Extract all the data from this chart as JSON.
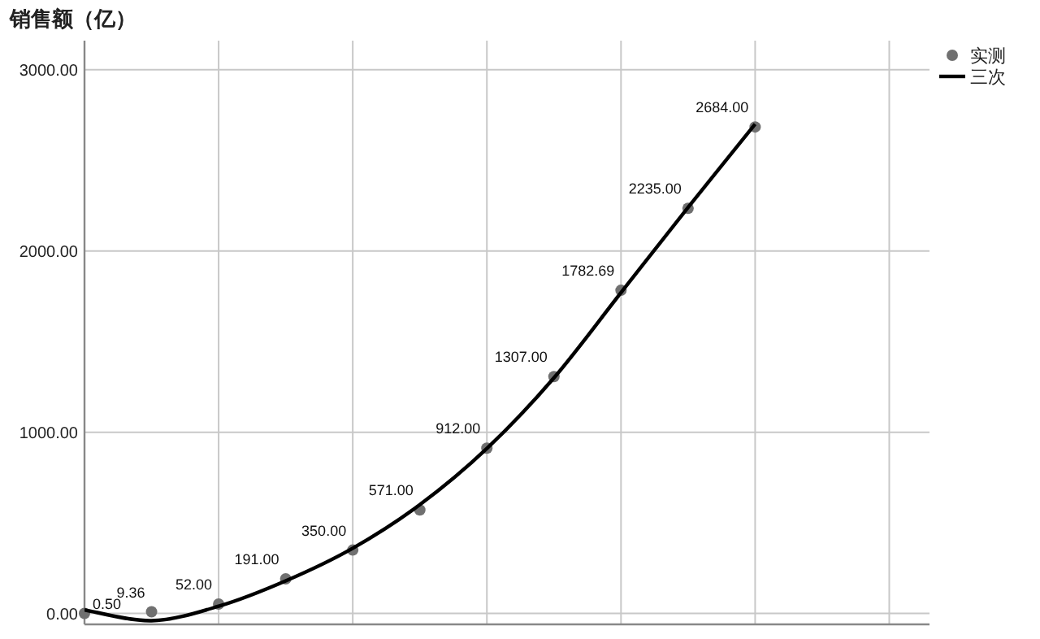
{
  "chart_data": {
    "type": "scatter",
    "ylabel": "销售额（亿）",
    "categories": [
      null,
      null,
      null,
      null,
      null,
      null,
      null,
      null,
      null,
      null,
      null
    ],
    "series": [
      {
        "name": "实测",
        "marker": "circle",
        "color": "#707070",
        "values": [
          0.5,
          9.36,
          52,
          191,
          350,
          571,
          912,
          1307,
          1782.69,
          2235,
          2684
        ],
        "value_labels": [
          "0.50",
          "9.36",
          "52.00",
          "191.00",
          "350.00",
          "571.00",
          "912.00",
          "1307.00",
          "1782.69",
          "2235.00",
          "2684.00"
        ]
      },
      {
        "name": "三次",
        "type": "line",
        "marker": "none",
        "color": "#000000",
        "values": [
          20,
          -40,
          40,
          180,
          360,
          600,
          910,
          1300,
          1770,
          2240,
          2700
        ]
      }
    ],
    "ylim": [
      -60,
      3160
    ],
    "yticks": [
      {
        "value": 0,
        "label": "0.00"
      },
      {
        "value": 1000,
        "label": "1000.00"
      },
      {
        "value": 2000,
        "label": "2000.00"
      },
      {
        "value": 3000,
        "label": "3000.00"
      }
    ],
    "grid": true,
    "legend": "right"
  }
}
